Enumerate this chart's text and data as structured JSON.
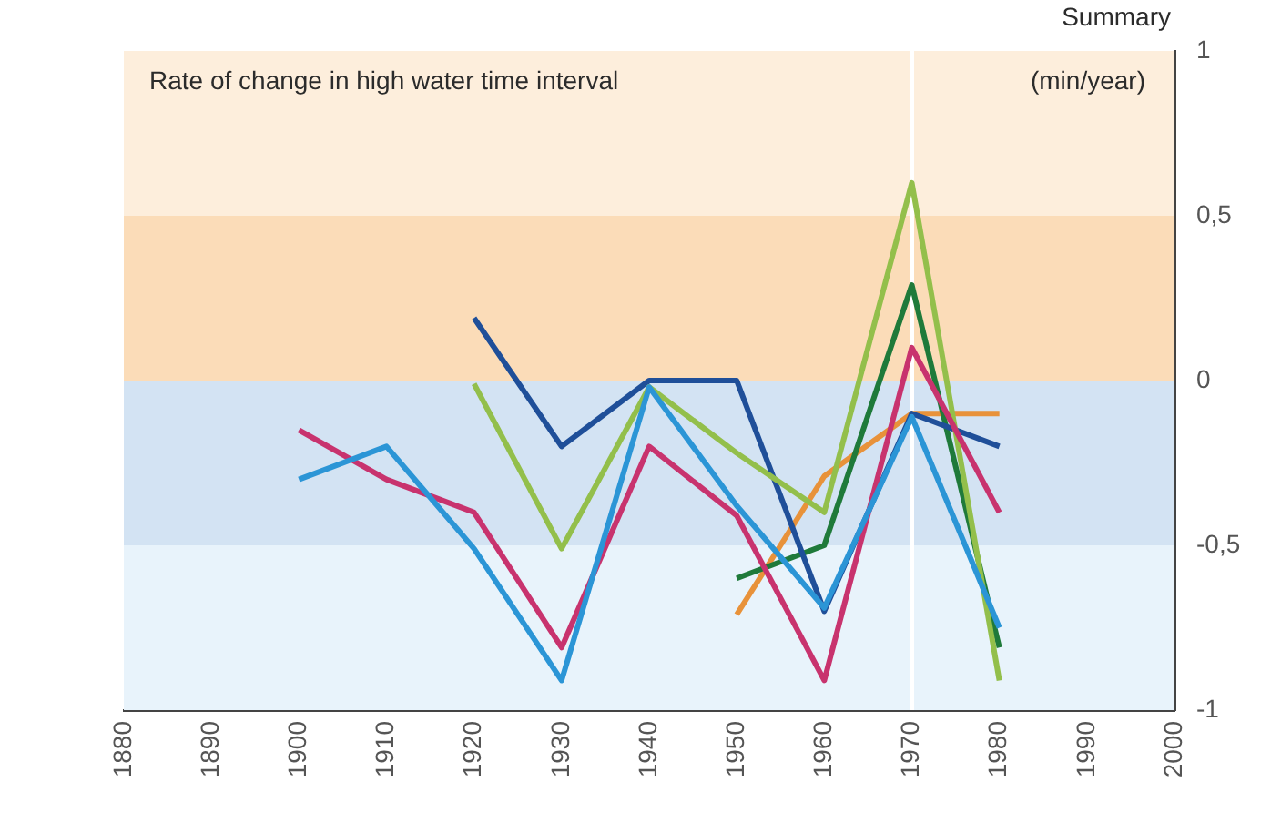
{
  "chart_data": {
    "type": "line",
    "title": "Rate of change in high water time interval",
    "annotations": [
      "Summary",
      "(min/year)"
    ],
    "x": [
      1900,
      1910,
      1920,
      1930,
      1940,
      1950,
      1960,
      1970,
      1980
    ],
    "series": [
      {
        "color": "#2b95d6",
        "values": [
          -0.3,
          -0.2,
          -0.51,
          -0.91,
          -0.02,
          -0.38,
          -0.69,
          -0.11,
          -0.75
        ]
      },
      {
        "color": "#c8336e",
        "values": [
          -0.15,
          -0.3,
          -0.4,
          -0.81,
          -0.2,
          -0.41,
          -0.91,
          0.1,
          -0.4
        ]
      },
      {
        "color": "#93bf4b",
        "values": [
          null,
          null,
          -0.01,
          -0.51,
          -0.02,
          -0.22,
          -0.4,
          0.6,
          -0.91
        ]
      },
      {
        "color": "#1f4f99",
        "values": [
          null,
          null,
          0.19,
          -0.2,
          0.0,
          0.0,
          -0.7,
          -0.1,
          -0.2
        ]
      },
      {
        "color": "#1f7a3a",
        "values": [
          null,
          null,
          null,
          null,
          null,
          -0.6,
          -0.5,
          0.29,
          -0.81
        ]
      },
      {
        "color": "#e8923a",
        "values": [
          null,
          null,
          null,
          null,
          null,
          -0.71,
          -0.29,
          -0.1,
          -0.1
        ]
      }
    ],
    "xlim": [
      1880,
      2000
    ],
    "xticks": [
      1880,
      1890,
      1900,
      1910,
      1920,
      1930,
      1940,
      1950,
      1960,
      1970,
      1980,
      1990,
      2000
    ],
    "ylim": [
      -1,
      1
    ],
    "yticks": [
      {
        "value": -1,
        "label": "-1"
      },
      {
        "value": -0.5,
        "label": "-0,5"
      },
      {
        "value": 0,
        "label": "0"
      },
      {
        "value": 0.5,
        "label": "0,5"
      },
      {
        "value": 1,
        "label": "1"
      }
    ],
    "bands": [
      {
        "axis": "y",
        "from": 0.5,
        "to": 1,
        "color": "#fdeedc"
      },
      {
        "axis": "y",
        "from": 0,
        "to": 0.5,
        "color": "#fbdcb8"
      },
      {
        "axis": "y",
        "from": -0.5,
        "to": 0,
        "color": "#d3e3f3"
      },
      {
        "axis": "y",
        "from": -1,
        "to": -0.5,
        "color": "#e8f3fb"
      }
    ],
    "ref_lines": [
      {
        "axis": "x",
        "value": 1970,
        "color": "#ffffff"
      }
    ],
    "grid": false,
    "legend": false,
    "marker": "none",
    "line_style": "solid"
  }
}
